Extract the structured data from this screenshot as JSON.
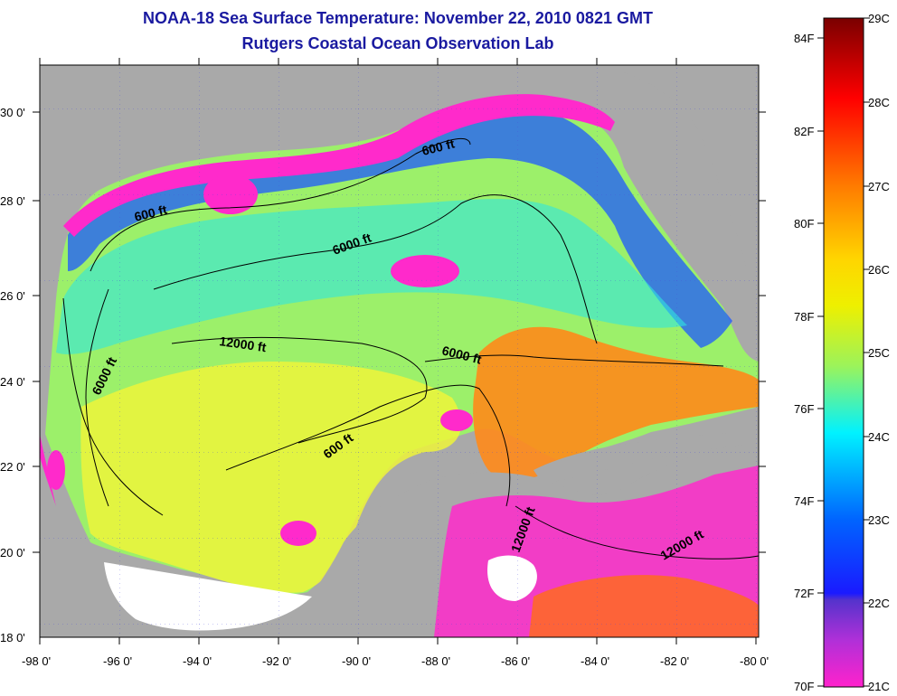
{
  "title": "NOAA-18 Sea Surface Temperature:  November 22, 2010 0821 GMT",
  "subtitle": "Rutgers Coastal Ocean Observation Lab",
  "lon_ticks": [
    "-98 0'",
    "-96 0'",
    "-94 0'",
    "-92 0'",
    "-90 0'",
    "-88 0'",
    "-86 0'",
    "-84 0'",
    "-82 0'",
    "-80 0'"
  ],
  "lat_ticks": [
    "30 0'",
    "28 0'",
    "26 0'",
    "24 0'",
    "22 0'",
    "20 0'",
    "18 0'"
  ],
  "contour_labels": [
    "600 ft",
    "600 ft",
    "6000 ft",
    "12000 ft",
    "6000 ft",
    "6000 ft",
    "600 ft",
    "12000 ft",
    "12000 ft"
  ],
  "colorbar": {
    "celsius": [
      "29C",
      "28C",
      "27C",
      "26C",
      "25C",
      "24C",
      "23C",
      "22C",
      "21C"
    ],
    "fahrenheit": [
      "84F",
      "82F",
      "80F",
      "78F",
      "76F",
      "74F",
      "72F",
      "70F"
    ]
  },
  "colors": {
    "land": "#a9a9a9",
    "no_data": "#ffffff",
    "title": "#1a1aa0"
  }
}
